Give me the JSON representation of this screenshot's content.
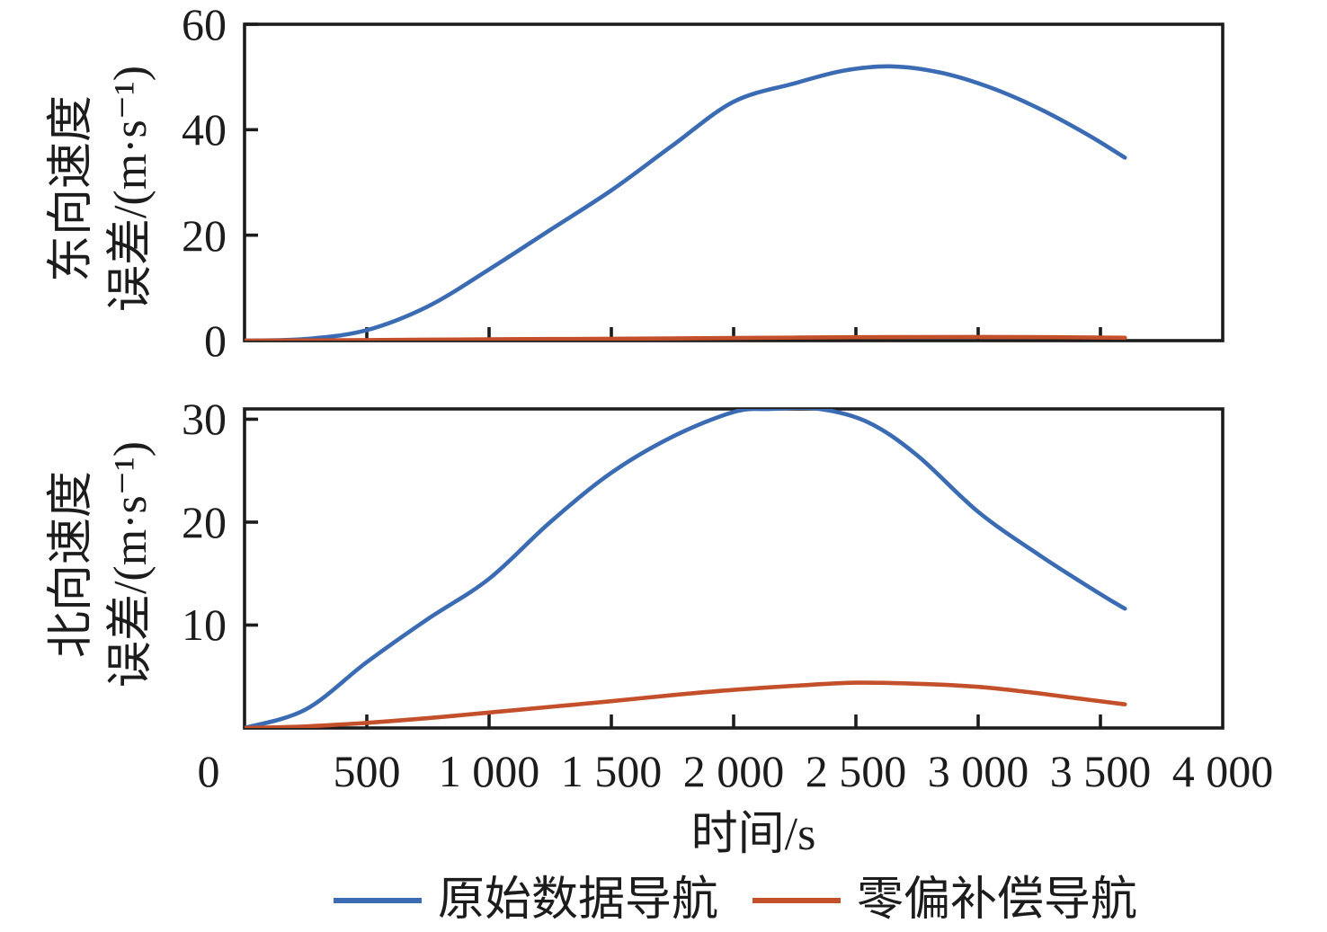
{
  "figure": {
    "background": "#ffffff",
    "axis_color": "#1c1c1c",
    "x_axis": {
      "label": "时间/s",
      "range": [
        0,
        4000
      ],
      "tick_values": [
        0,
        500,
        1000,
        1500,
        2000,
        2500,
        3000,
        3500,
        4000
      ],
      "tick_labels": [
        "0",
        "500",
        "1 000",
        "1 500",
        "2 000",
        "2 500",
        "3 000",
        "3 500",
        "4 000"
      ]
    },
    "legend": {
      "position": "bottom-center",
      "items": [
        {
          "label": "原始数据导航",
          "color": "#3b6bb3"
        },
        {
          "label": "零偏补偿导航",
          "color": "#c44f2b"
        }
      ]
    }
  },
  "chart_data": [
    {
      "type": "line",
      "panel": "top",
      "ylabel_line1": "东向速度",
      "ylabel_line2": "误差/(m·s⁻¹)",
      "xlabel": "时间/s",
      "xlim": [
        0,
        4000
      ],
      "ylim": [
        0,
        60
      ],
      "grid": false,
      "y_tick_values": [
        0,
        20,
        40,
        60
      ],
      "y_tick_labels": [
        "0",
        "20",
        "40",
        "60"
      ],
      "series": [
        {
          "name": "原始数据导航",
          "color": "#3b6bb3",
          "x": [
            0,
            250,
            500,
            750,
            1000,
            1250,
            1500,
            1750,
            2000,
            2250,
            2450,
            2650,
            2850,
            3050,
            3250,
            3450,
            3600
          ],
          "y": [
            0,
            0.3,
            2,
            6.5,
            13.5,
            21,
            28.5,
            37,
            45.3,
            48.8,
            51.2,
            52,
            50.8,
            48,
            44,
            39,
            34.7
          ]
        },
        {
          "name": "零偏补偿导航",
          "color": "#c44f2b",
          "x": [
            0,
            500,
            1000,
            1500,
            2000,
            2500,
            3000,
            3300,
            3600
          ],
          "y": [
            0,
            0.1,
            0.25,
            0.35,
            0.5,
            0.65,
            0.7,
            0.65,
            0.55
          ]
        }
      ]
    },
    {
      "type": "line",
      "panel": "bottom",
      "ylabel_line1": "北向速度",
      "ylabel_line2": "误差/(m·s⁻¹)",
      "xlabel": "时间/s",
      "xlim": [
        0,
        4000
      ],
      "ylim": [
        0,
        31
      ],
      "grid": false,
      "y_tick_values": [
        10,
        20,
        30
      ],
      "y_tick_labels": [
        "10",
        "20",
        "30"
      ],
      "series": [
        {
          "name": "原始数据导航",
          "color": "#3b6bb3",
          "x": [
            0,
            250,
            500,
            750,
            1000,
            1250,
            1500,
            1750,
            2000,
            2150,
            2350,
            2550,
            2750,
            3000,
            3250,
            3500,
            3600
          ],
          "y": [
            0,
            1.8,
            6.4,
            10.6,
            14.5,
            20,
            24.8,
            28.3,
            30.7,
            31,
            31,
            29.7,
            26.5,
            21,
            16.8,
            13,
            11.6
          ]
        },
        {
          "name": "零偏补偿导航",
          "color": "#c44f2b",
          "x": [
            0,
            250,
            500,
            750,
            1000,
            1250,
            1500,
            1750,
            2000,
            2250,
            2500,
            2750,
            3000,
            3200,
            3400,
            3600
          ],
          "y": [
            0,
            0.15,
            0.5,
            0.95,
            1.5,
            2.05,
            2.6,
            3.2,
            3.7,
            4.1,
            4.4,
            4.3,
            4.0,
            3.5,
            2.9,
            2.3
          ]
        }
      ]
    }
  ]
}
